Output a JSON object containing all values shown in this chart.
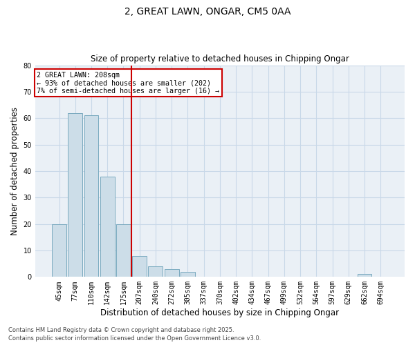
{
  "title1": "2, GREAT LAWN, ONGAR, CM5 0AA",
  "title2": "Size of property relative to detached houses in Chipping Ongar",
  "xlabel": "Distribution of detached houses by size in Chipping Ongar",
  "ylabel": "Number of detached properties",
  "categories": [
    "45sqm",
    "77sqm",
    "110sqm",
    "142sqm",
    "175sqm",
    "207sqm",
    "240sqm",
    "272sqm",
    "305sqm",
    "337sqm",
    "370sqm",
    "402sqm",
    "434sqm",
    "467sqm",
    "499sqm",
    "532sqm",
    "564sqm",
    "597sqm",
    "629sqm",
    "662sqm",
    "694sqm"
  ],
  "values": [
    20,
    62,
    61,
    38,
    20,
    8,
    4,
    3,
    2,
    0,
    0,
    0,
    0,
    0,
    0,
    0,
    0,
    0,
    0,
    1,
    0
  ],
  "bar_color": "#ccdde8",
  "bar_edge_color": "#7aaabf",
  "vline_color": "#cc0000",
  "annotation_text": "2 GREAT LAWN: 208sqm\n← 93% of detached houses are smaller (202)\n7% of semi-detached houses are larger (16) →",
  "annotation_box_color": "#cc0000",
  "ylim": [
    0,
    80
  ],
  "yticks": [
    0,
    10,
    20,
    30,
    40,
    50,
    60,
    70,
    80
  ],
  "grid_color": "#c8d8e8",
  "background_color": "#eaf0f6",
  "footer1": "Contains HM Land Registry data © Crown copyright and database right 2025.",
  "footer2": "Contains public sector information licensed under the Open Government Licence v3.0."
}
